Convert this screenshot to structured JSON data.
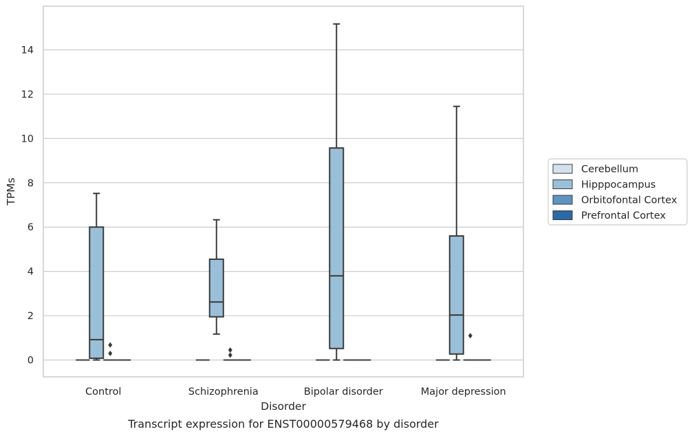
{
  "chart_data": {
    "type": "box",
    "xlabel": "Disorder",
    "ylabel": "TPMs",
    "caption": "Transcript expression for ENST00000579468 by disorder",
    "ylim": [
      -0.75,
      15.9
    ],
    "yticks": [
      0,
      2,
      4,
      6,
      8,
      10,
      12,
      14
    ],
    "grid": "horizontal",
    "legend_position": "right",
    "categories": [
      "Control",
      "Schizophrenia",
      "Bipolar disorder",
      "Major depression"
    ],
    "series": [
      {
        "name": "Cerebellum",
        "color": "#d4e2ef",
        "boxes": [
          {
            "whislo": 0,
            "q1": 0,
            "med": 0,
            "q3": 0,
            "whishi": 0,
            "fliers": []
          },
          {
            "whislo": 0,
            "q1": 0,
            "med": 0,
            "q3": 0,
            "whishi": 0,
            "fliers": []
          },
          {
            "whislo": 0,
            "q1": 0,
            "med": 0,
            "q3": 0,
            "whishi": 0,
            "fliers": []
          },
          {
            "whislo": 0,
            "q1": 0,
            "med": 0,
            "q3": 0,
            "whishi": 0,
            "fliers": []
          }
        ]
      },
      {
        "name": "Hipppocampus",
        "color": "#9ac0d9",
        "boxes": [
          {
            "whislo": 0,
            "q1": 0.08,
            "med": 0.92,
            "q3": 6.0,
            "whishi": 7.52,
            "fliers": []
          },
          {
            "whislo": 1.17,
            "q1": 1.95,
            "med": 2.62,
            "q3": 4.55,
            "whishi": 6.33,
            "fliers": []
          },
          {
            "whislo": 0,
            "q1": 0.52,
            "med": 3.8,
            "q3": 9.57,
            "whishi": 15.17,
            "fliers": []
          },
          {
            "whislo": 0,
            "q1": 0.27,
            "med": 2.03,
            "q3": 5.6,
            "whishi": 11.45,
            "fliers": []
          }
        ]
      },
      {
        "name": "Orbitofontal Cortex",
        "color": "#5c95c0",
        "boxes": [
          {
            "whislo": 0,
            "q1": 0,
            "med": 0,
            "q3": 0,
            "whishi": 0,
            "fliers": [
              0.68,
              0.3
            ]
          },
          {
            "whislo": 0,
            "q1": 0,
            "med": 0,
            "q3": 0,
            "whishi": 0,
            "fliers": [
              0.45,
              0.22
            ]
          },
          {
            "whislo": 0,
            "q1": 0,
            "med": 0,
            "q3": 0,
            "whishi": 0,
            "fliers": []
          },
          {
            "whislo": 0,
            "q1": 0,
            "med": 0,
            "q3": 0,
            "whishi": 0,
            "fliers": [
              1.1
            ]
          }
        ]
      },
      {
        "name": "Prefrontal Cortex",
        "color": "#2b6aa6",
        "boxes": [
          {
            "whislo": 0,
            "q1": 0,
            "med": 0,
            "q3": 0,
            "whishi": 0,
            "fliers": []
          },
          {
            "whislo": 0,
            "q1": 0,
            "med": 0,
            "q3": 0,
            "whishi": 0,
            "fliers": []
          },
          {
            "whislo": 0,
            "q1": 0,
            "med": 0,
            "q3": 0,
            "whishi": 0,
            "fliers": []
          },
          {
            "whislo": 0,
            "q1": 0,
            "med": 0,
            "q3": 0,
            "whishi": 0,
            "fliers": []
          }
        ]
      }
    ]
  }
}
